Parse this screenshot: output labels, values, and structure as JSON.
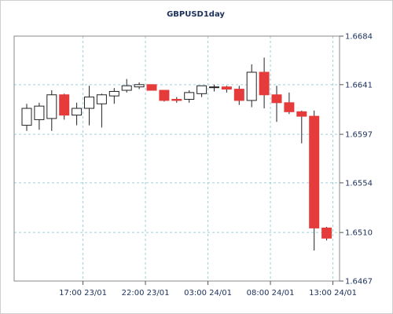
{
  "chart_data": {
    "type": "candlestick",
    "title": "GBPUSD1day",
    "xlabel": "",
    "ylabel": "",
    "ylim": [
      1.6467,
      1.6684
    ],
    "y_ticks": [
      "1.6684",
      "1.6641",
      "1.6597",
      "1.6554",
      "1.6510",
      "1.6467"
    ],
    "y_tick_values": [
      1.6684,
      1.6641,
      1.6597,
      1.6554,
      1.651,
      1.6467
    ],
    "x_ticks": [
      "17:00 23/01",
      "22:00 23/01",
      "03:00 24/01",
      "08:00 24/01",
      "13:00 24/01"
    ],
    "x_tick_candle_index": [
      4.5,
      9.5,
      14.5,
      19.5,
      24.5
    ],
    "grid": true,
    "legend": "none",
    "up_color": "#ffffff",
    "down_color": "#e53b3b",
    "ohlc": [
      {
        "o": 1.6605,
        "h": 1.6624,
        "l": 1.66,
        "c": 1.662
      },
      {
        "o": 1.661,
        "h": 1.6625,
        "l": 1.6601,
        "c": 1.6622
      },
      {
        "o": 1.6611,
        "h": 1.6636,
        "l": 1.66,
        "c": 1.6632
      },
      {
        "o": 1.6632,
        "h": 1.6633,
        "l": 1.661,
        "c": 1.6614
      },
      {
        "o": 1.6614,
        "h": 1.6625,
        "l": 1.6605,
        "c": 1.662
      },
      {
        "o": 1.662,
        "h": 1.664,
        "l": 1.6605,
        "c": 1.663
      },
      {
        "o": 1.6624,
        "h": 1.6633,
        "l": 1.6603,
        "c": 1.6632
      },
      {
        "o": 1.6631,
        "h": 1.6638,
        "l": 1.6624,
        "c": 1.6635
      },
      {
        "o": 1.6636,
        "h": 1.6646,
        "l": 1.6634,
        "c": 1.664
      },
      {
        "o": 1.6639,
        "h": 1.6643,
        "l": 1.6637,
        "c": 1.6641
      },
      {
        "o": 1.6641,
        "h": 1.664,
        "l": 1.6636,
        "c": 1.6636
      },
      {
        "o": 1.6636,
        "h": 1.6636,
        "l": 1.6626,
        "c": 1.6627
      },
      {
        "o": 1.6628,
        "h": 1.663,
        "l": 1.6625,
        "c": 1.6627
      },
      {
        "o": 1.6628,
        "h": 1.6636,
        "l": 1.6625,
        "c": 1.6634
      },
      {
        "o": 1.6633,
        "h": 1.664,
        "l": 1.663,
        "c": 1.664
      },
      {
        "o": 1.6639,
        "h": 1.6641,
        "l": 1.6635,
        "c": 1.6639
      },
      {
        "o": 1.6639,
        "h": 1.664,
        "l": 1.6634,
        "c": 1.6637
      },
      {
        "o": 1.6637,
        "h": 1.664,
        "l": 1.6623,
        "c": 1.6627
      },
      {
        "o": 1.6627,
        "h": 1.6659,
        "l": 1.6621,
        "c": 1.6652
      },
      {
        "o": 1.6652,
        "h": 1.6665,
        "l": 1.662,
        "c": 1.6632
      },
      {
        "o": 1.6632,
        "h": 1.664,
        "l": 1.6608,
        "c": 1.6625
      },
      {
        "o": 1.6625,
        "h": 1.6634,
        "l": 1.6615,
        "c": 1.6617
      },
      {
        "o": 1.6617,
        "h": 1.6618,
        "l": 1.6589,
        "c": 1.6613
      },
      {
        "o": 1.6613,
        "h": 1.6618,
        "l": 1.6494,
        "c": 1.6514
      },
      {
        "o": 1.6514,
        "h": 1.6515,
        "l": 1.6503,
        "c": 1.6505
      }
    ]
  }
}
